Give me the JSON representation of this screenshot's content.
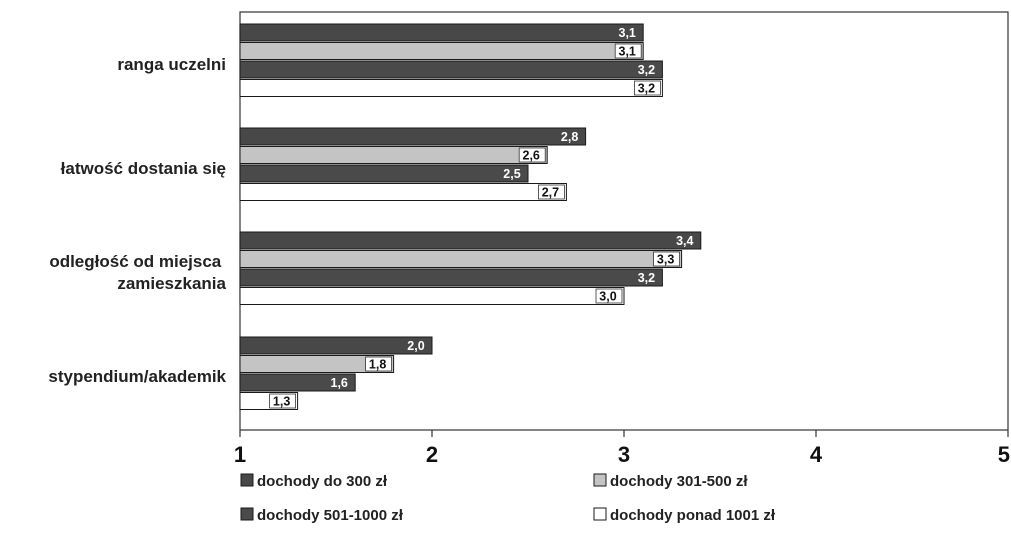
{
  "chart_data": {
    "type": "bar",
    "orientation": "horizontal",
    "categories": [
      "ranga uczelni",
      "łatwość dostania się",
      "odległość od miejsca zamieszkania",
      "stypendium/akademik"
    ],
    "series": [
      {
        "name": "dochody do 300 zł",
        "color": "#484848",
        "values": [
          3.1,
          2.8,
          3.4,
          2.0
        ],
        "labels": [
          "3,1",
          "2,8",
          "3,4",
          "2,0"
        ]
      },
      {
        "name": "dochody 301-500 zł",
        "color": "#c4c4c4",
        "values": [
          3.1,
          2.6,
          3.3,
          1.8
        ],
        "labels": [
          "3,1",
          "2,6",
          "3,3",
          "1,8"
        ]
      },
      {
        "name": "dochody 501-1000 zł",
        "color": "#4a4a4a",
        "values": [
          3.2,
          2.5,
          3.2,
          1.6
        ],
        "labels": [
          "3,2",
          "2,5",
          "3,2",
          "1,6"
        ]
      },
      {
        "name": "dochody ponad 1001 zł",
        "color": "#ffffff",
        "values": [
          3.2,
          2.7,
          3.0,
          1.3
        ],
        "labels": [
          "3,2",
          "2,7",
          "3,0",
          "1,3"
        ]
      }
    ],
    "xlim": [
      1,
      5
    ],
    "xticks": [
      "1",
      "2",
      "3",
      "4",
      "5"
    ],
    "title": "",
    "xlabel": "",
    "ylabel": "",
    "legend_position": "bottom",
    "grid": false
  }
}
